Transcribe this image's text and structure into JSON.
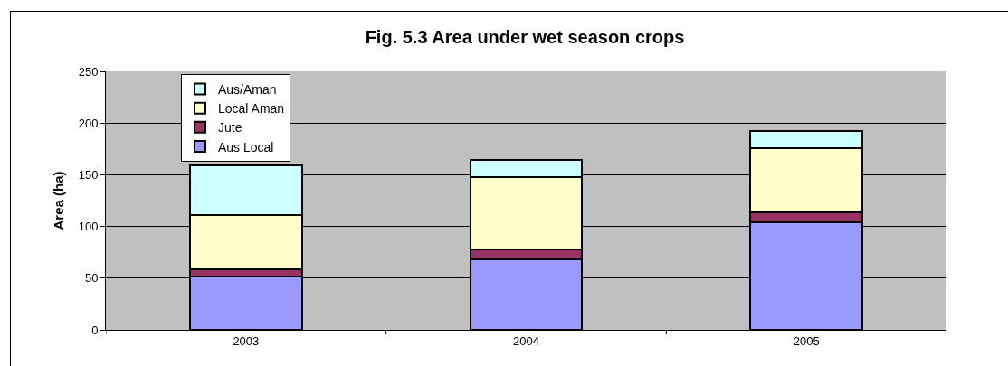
{
  "chart_data": {
    "type": "bar",
    "title": "Fig. 5.3 Area under wet season crops",
    "ylabel": "Area (ha)",
    "categories": [
      "2003",
      "2004",
      "2005"
    ],
    "series": [
      {
        "name": "Aus Local",
        "color": "#9999ff",
        "values": [
          52,
          68,
          104
        ]
      },
      {
        "name": "Jute",
        "color": "#993366",
        "values": [
          7,
          10,
          10
        ]
      },
      {
        "name": "Local Aman",
        "color": "#ffffcc",
        "values": [
          52,
          70,
          62
        ]
      },
      {
        "name": "Aus/Aman",
        "color": "#ccffff",
        "values": [
          48,
          16,
          16
        ]
      }
    ],
    "stacked": true,
    "ylim": [
      0,
      250
    ],
    "yticks": [
      0,
      50,
      100,
      150,
      200,
      250
    ],
    "grid": "y",
    "legend": "top left"
  }
}
